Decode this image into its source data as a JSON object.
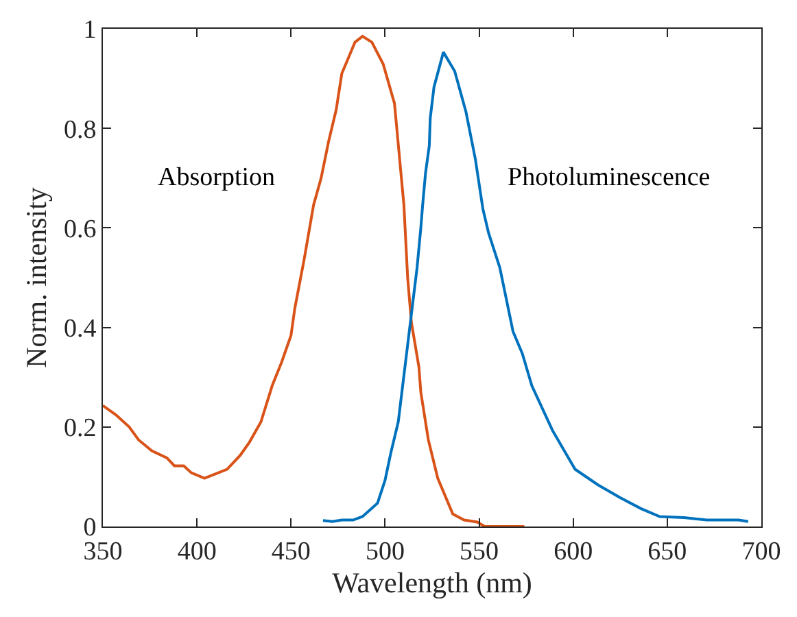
{
  "chart_data": {
    "type": "line",
    "xlabel": "Wavelength (nm)",
    "ylabel": "Norm. intensity",
    "xlim": [
      350,
      700
    ],
    "xticks": [
      350,
      400,
      450,
      500,
      550,
      600,
      650,
      700
    ],
    "ylim": [
      0,
      1
    ],
    "yticks": [
      0,
      0.2,
      0.4,
      0.6,
      0.8,
      1
    ],
    "legend": false,
    "marker": "none",
    "line_style": "solid",
    "series": [
      {
        "name": "Absorption",
        "color": "#d95319",
        "x": [
          350,
          357,
          364,
          369,
          376,
          384,
          388,
          393,
          397,
          404,
          416,
          423,
          428,
          434,
          440,
          445,
          450,
          452,
          457,
          462,
          466,
          470,
          474,
          477,
          484,
          488,
          493,
          499,
          505,
          510,
          512,
          514,
          518,
          519,
          523,
          528,
          536,
          542,
          549,
          553,
          574
        ],
        "values": [
          0.243,
          0.224,
          0.2,
          0.174,
          0.152,
          0.138,
          0.122,
          0.122,
          0.108,
          0.097,
          0.115,
          0.143,
          0.17,
          0.21,
          0.283,
          0.33,
          0.384,
          0.438,
          0.537,
          0.646,
          0.7,
          0.774,
          0.837,
          0.91,
          0.973,
          0.985,
          0.973,
          0.929,
          0.85,
          0.646,
          0.5,
          0.41,
          0.32,
          0.27,
          0.174,
          0.097,
          0.025,
          0.013,
          0.009,
          0,
          0
        ]
      },
      {
        "name": "Photoluminescence",
        "color": "#0072bd",
        "x": [
          467,
          472,
          477,
          483,
          488,
          496,
          500,
          503,
          507,
          512,
          517,
          519,
          520,
          521.5,
          523.5,
          524,
          526,
          531,
          537,
          543,
          548,
          552,
          555,
          561,
          568,
          573,
          578,
          589,
          601,
          613,
          625,
          636,
          646,
          659,
          671,
          688,
          693
        ],
        "values": [
          0.012,
          0.01,
          0.013,
          0.013,
          0.02,
          0.047,
          0.093,
          0.147,
          0.21,
          0.365,
          0.52,
          0.6,
          0.647,
          0.71,
          0.765,
          0.82,
          0.883,
          0.953,
          0.915,
          0.833,
          0.738,
          0.638,
          0.59,
          0.52,
          0.392,
          0.347,
          0.283,
          0.193,
          0.115,
          0.084,
          0.058,
          0.036,
          0.02,
          0.018,
          0.013,
          0.013,
          0.01
        ]
      }
    ]
  }
}
